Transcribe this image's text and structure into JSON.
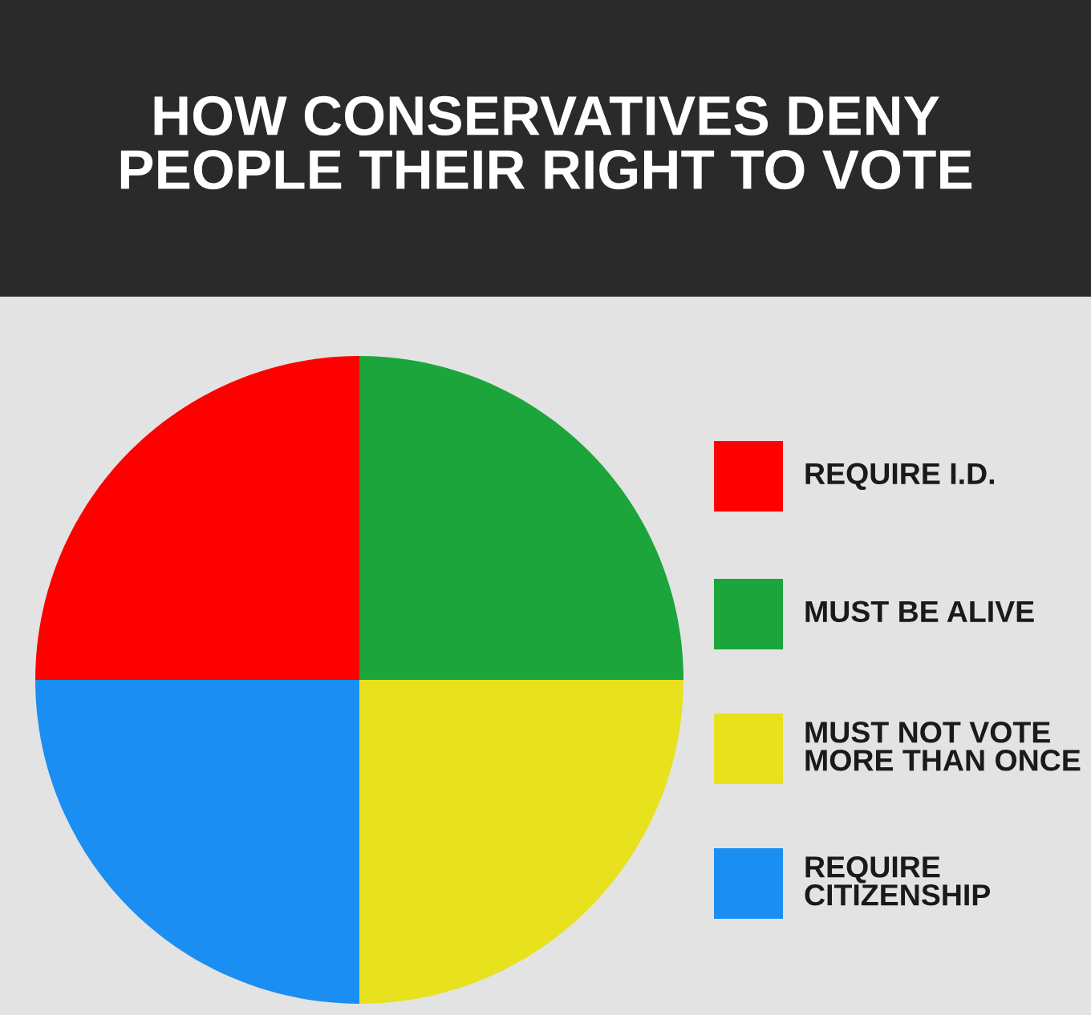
{
  "chart_data": {
    "type": "pie",
    "title": "HOW CONSERVATIVES DENY\nPEOPLE THEIR RIGHT TO VOTE",
    "categories": [
      "REQUIRE I.D.",
      "MUST BE ALIVE",
      "MUST NOT VOTE\nMORE THAN ONCE",
      "REQUIRE\nCITIZENSHIP"
    ],
    "values": [
      25,
      25,
      25,
      25
    ],
    "colors": [
      "#fe0000",
      "#1ca53a",
      "#e8e11e",
      "#1b8ef2"
    ],
    "legend": "right"
  }
}
